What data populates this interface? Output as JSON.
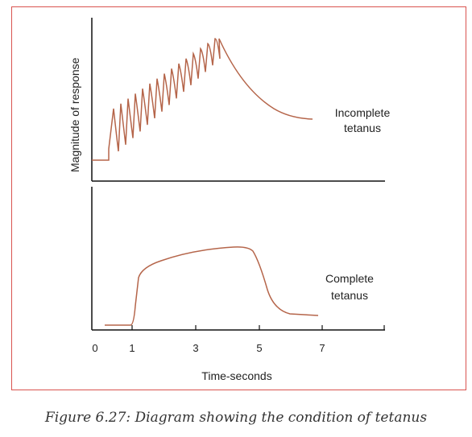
{
  "y_axis_label": "Magnitude of response",
  "x_axis_label": "Time-seconds",
  "x_ticks": [
    "0",
    "1",
    "3",
    "5",
    "7"
  ],
  "curves": [
    {
      "label_lines": [
        "Incomplete",
        "tetanus"
      ]
    },
    {
      "label_lines": [
        "Complete",
        "tetanus"
      ]
    }
  ],
  "caption": "Figure 6.27: Diagram showing the condition of tetanus"
}
